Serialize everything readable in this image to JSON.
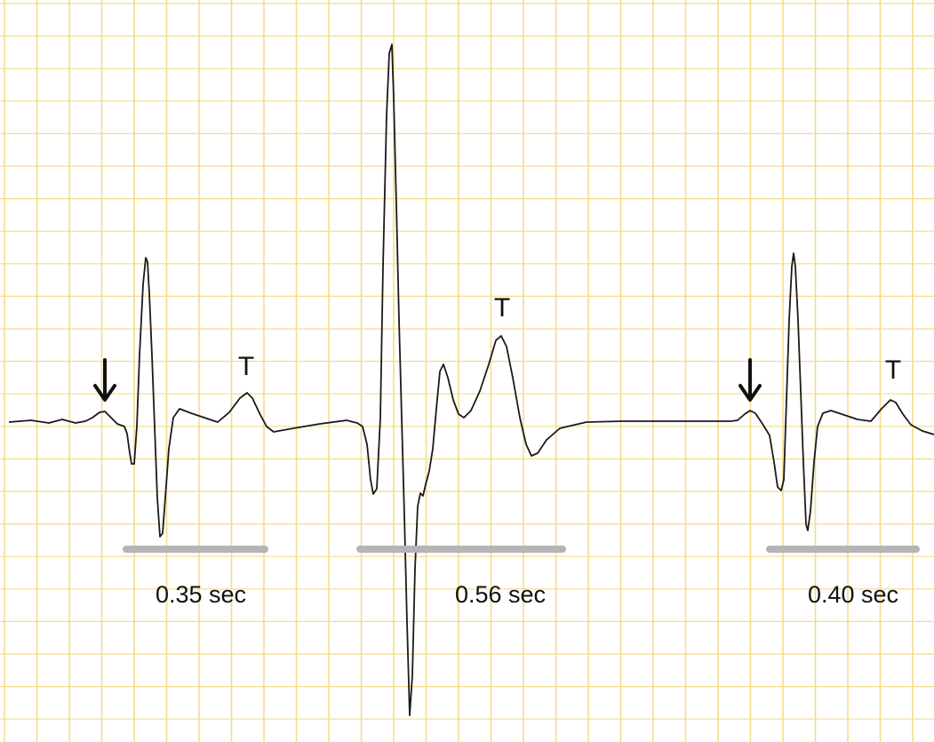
{
  "colors": {
    "grid": "#f5dc8c",
    "trace": "#1a1a1a",
    "interval_bar": "#b4b4b4",
    "arrow": "#111111",
    "text": "#111111"
  },
  "beats": [
    {
      "id": "beat-1",
      "wave_label": "T",
      "interval_label": "0.35 sec",
      "arrow_icon": "down-arrow-icon"
    },
    {
      "id": "beat-2",
      "wave_label": "T",
      "interval_label": "0.56 sec",
      "arrow_icon": null
    },
    {
      "id": "beat-3",
      "wave_label": "T",
      "interval_label": "0.40 sec",
      "arrow_icon": "down-arrow-icon"
    }
  ]
}
